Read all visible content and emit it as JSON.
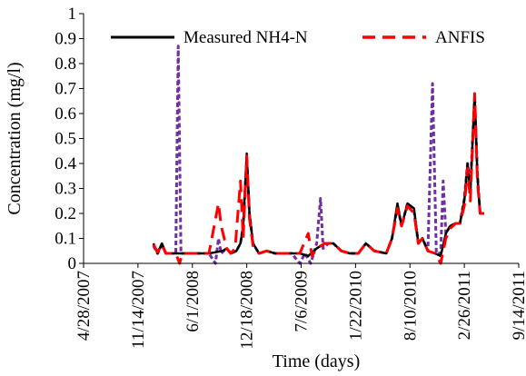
{
  "chart_data": {
    "type": "line",
    "title": "",
    "xlabel": "Time (days)",
    "ylabel": "Concentration (mg/l)",
    "x_tick_labels": [
      "4/28/2007",
      "11/14/2007",
      "6/1/2008",
      "12/18/2008",
      "7/6/2009",
      "1/22/2010",
      "8/10/2010",
      "2/26/2011",
      "9/14/2011"
    ],
    "xlim": [
      "4/28/2007",
      "9/14/2011"
    ],
    "ylim": [
      0,
      1
    ],
    "y_tick_labels": [
      "0",
      "0.1",
      "0.2",
      "0.3",
      "0.4",
      "0.5",
      "0.6",
      "0.7",
      "0.8",
      "0.9",
      "1"
    ],
    "grid": false,
    "legend_position": "top",
    "series": [
      {
        "name": "Measured NH4-N",
        "color": "#000000",
        "style": "solid",
        "points": [
          [
            "1/10/2008",
            0.08
          ],
          [
            "1/25/2008",
            0.04
          ],
          [
            "2/10/2008",
            0.08
          ],
          [
            "2/25/2008",
            0.04
          ],
          [
            "4/1/2008",
            0.04
          ],
          [
            "6/1/2008",
            0.04
          ],
          [
            "8/1/2008",
            0.04
          ],
          [
            "9/20/2008",
            0.05
          ],
          [
            "10/5/2008",
            0.06
          ],
          [
            "10/20/2008",
            0.04
          ],
          [
            "11/10/2008",
            0.05
          ],
          [
            "11/25/2008",
            0.08
          ],
          [
            "12/5/2008",
            0.15
          ],
          [
            "12/18/2008",
            0.44
          ],
          [
            "12/28/2008",
            0.2
          ],
          [
            "1/10/2009",
            0.08
          ],
          [
            "2/1/2009",
            0.04
          ],
          [
            "3/1/2009",
            0.05
          ],
          [
            "4/1/2009",
            0.04
          ],
          [
            "6/1/2009",
            0.04
          ],
          [
            "7/1/2009",
            0.04
          ],
          [
            "8/1/2009",
            0.03
          ],
          [
            "9/1/2009",
            0.06
          ],
          [
            "10/1/2009",
            0.08
          ],
          [
            "11/1/2009",
            0.08
          ],
          [
            "12/1/2009",
            0.05
          ],
          [
            "1/1/2010",
            0.04
          ],
          [
            "2/1/2010",
            0.04
          ],
          [
            "3/1/2010",
            0.08
          ],
          [
            "4/1/2010",
            0.05
          ],
          [
            "5/15/2010",
            0.04
          ],
          [
            "6/5/2010",
            0.1
          ],
          [
            "6/25/2010",
            0.24
          ],
          [
            "7/10/2010",
            0.15
          ],
          [
            "8/1/2010",
            0.24
          ],
          [
            "8/25/2010",
            0.22
          ],
          [
            "9/10/2010",
            0.08
          ],
          [
            "9/25/2010",
            0.1
          ],
          [
            "10/15/2010",
            0.05
          ],
          [
            "11/10/2010",
            0.04
          ],
          [
            "12/1/2010",
            0.03
          ],
          [
            "12/20/2010",
            0.12
          ],
          [
            "1/5/2011",
            0.15
          ],
          [
            "1/25/2011",
            0.16
          ],
          [
            "2/10/2011",
            0.16
          ],
          [
            "2/26/2011",
            0.25
          ],
          [
            "3/10/2011",
            0.4
          ],
          [
            "3/20/2011",
            0.28
          ],
          [
            "4/5/2011",
            0.68
          ],
          [
            "4/15/2011",
            0.35
          ],
          [
            "4/25/2011",
            0.2
          ],
          [
            "5/10/2011",
            0.2
          ]
        ]
      },
      {
        "name": "ANFIS",
        "color": "#ff0000",
        "style": "long-dash",
        "points": [
          [
            "1/10/2008",
            0.075
          ],
          [
            "1/25/2008",
            0.045
          ],
          [
            "2/10/2008",
            0.075
          ],
          [
            "2/25/2008",
            0.04
          ],
          [
            "4/1/2008",
            0.04
          ],
          [
            "4/15/2008",
            0.0
          ],
          [
            "4/25/2008",
            0.04
          ],
          [
            "6/1/2008",
            0.04
          ],
          [
            "8/1/2008",
            0.04
          ],
          [
            "9/5/2008",
            0.24
          ],
          [
            "9/15/2008",
            0.15
          ],
          [
            "10/5/2008",
            0.06
          ],
          [
            "10/20/2008",
            0.04
          ],
          [
            "11/5/2008",
            0.06
          ],
          [
            "11/25/2008",
            0.33
          ],
          [
            "12/5/2008",
            0.1
          ],
          [
            "12/18/2008",
            0.43
          ],
          [
            "12/28/2008",
            0.18
          ],
          [
            "1/10/2009",
            0.07
          ],
          [
            "2/1/2009",
            0.04
          ],
          [
            "3/1/2009",
            0.05
          ],
          [
            "4/1/2009",
            0.04
          ],
          [
            "6/1/2009",
            0.04
          ],
          [
            "7/1/2009",
            0.04
          ],
          [
            "8/1/2009",
            0.12
          ],
          [
            "8/15/2009",
            0.03
          ],
          [
            "9/1/2009",
            0.06
          ],
          [
            "10/1/2009",
            0.08
          ],
          [
            "11/1/2009",
            0.08
          ],
          [
            "12/1/2009",
            0.05
          ],
          [
            "1/1/2010",
            0.04
          ],
          [
            "2/1/2010",
            0.04
          ],
          [
            "3/1/2010",
            0.08
          ],
          [
            "4/1/2010",
            0.05
          ],
          [
            "5/15/2010",
            0.04
          ],
          [
            "6/5/2010",
            0.1
          ],
          [
            "6/25/2010",
            0.22
          ],
          [
            "7/10/2010",
            0.15
          ],
          [
            "8/1/2010",
            0.23
          ],
          [
            "8/25/2010",
            0.2
          ],
          [
            "9/10/2010",
            0.08
          ],
          [
            "9/25/2010",
            0.1
          ],
          [
            "10/15/2010",
            0.05
          ],
          [
            "11/10/2010",
            0.04
          ],
          [
            "12/1/2010",
            0.0
          ],
          [
            "12/20/2010",
            0.1
          ],
          [
            "1/5/2011",
            0.14
          ],
          [
            "1/25/2011",
            0.16
          ],
          [
            "2/10/2011",
            0.16
          ],
          [
            "2/26/2011",
            0.23
          ],
          [
            "3/10/2011",
            0.38
          ],
          [
            "3/20/2011",
            0.25
          ],
          [
            "4/5/2011",
            0.68
          ],
          [
            "4/15/2011",
            0.33
          ],
          [
            "4/25/2011",
            0.2
          ],
          [
            "5/10/2011",
            0.2
          ]
        ]
      },
      {
        "name": "",
        "color": "#7030a0",
        "style": "short-dash",
        "points": [
          [
            "1/10/2008",
            0.07
          ],
          [
            "1/25/2008",
            0.04
          ],
          [
            "2/10/2008",
            0.07
          ],
          [
            "2/25/2008",
            0.04
          ],
          [
            "4/1/2008",
            0.04
          ],
          [
            "4/10/2008",
            0.87
          ],
          [
            "4/20/2008",
            0.04
          ],
          [
            "6/1/2008",
            0.04
          ],
          [
            "8/1/2008",
            0.04
          ],
          [
            "8/25/2008",
            0.0
          ],
          [
            "9/5/2008",
            0.1
          ],
          [
            "9/15/2008",
            0.04
          ],
          [
            "10/5/2008",
            0.06
          ],
          [
            "10/20/2008",
            0.04
          ],
          [
            "11/10/2008",
            0.05
          ],
          [
            "11/25/2008",
            0.08
          ],
          [
            "12/5/2008",
            0.15
          ],
          [
            "12/18/2008",
            0.42
          ],
          [
            "12/28/2008",
            0.2
          ],
          [
            "1/10/2009",
            0.08
          ],
          [
            "2/1/2009",
            0.04
          ],
          [
            "3/1/2009",
            0.05
          ],
          [
            "4/1/2009",
            0.04
          ],
          [
            "6/1/2009",
            0.04
          ],
          [
            "7/1/2009",
            0.0
          ],
          [
            "7/20/2009",
            0.04
          ],
          [
            "8/10/2009",
            0.0
          ],
          [
            "9/1/2009",
            0.08
          ],
          [
            "9/15/2009",
            0.26
          ],
          [
            "9/25/2009",
            0.06
          ],
          [
            "10/15/2009",
            0.08
          ],
          [
            "11/1/2009",
            0.08
          ],
          [
            "12/1/2009",
            0.05
          ],
          [
            "1/1/2010",
            0.04
          ],
          [
            "2/1/2010",
            0.04
          ],
          [
            "3/1/2010",
            0.08
          ],
          [
            "4/1/2010",
            0.05
          ],
          [
            "5/15/2010",
            0.04
          ],
          [
            "6/5/2010",
            0.1
          ],
          [
            "6/25/2010",
            0.23
          ],
          [
            "7/10/2010",
            0.15
          ],
          [
            "8/1/2010",
            0.24
          ],
          [
            "8/25/2010",
            0.21
          ],
          [
            "9/10/2010",
            0.08
          ],
          [
            "9/25/2010",
            0.1
          ],
          [
            "10/15/2010",
            0.05
          ],
          [
            "11/1/2010",
            0.72
          ],
          [
            "11/15/2010",
            0.04
          ],
          [
            "12/1/2010",
            0.04
          ],
          [
            "12/10/2010",
            0.33
          ],
          [
            "12/20/2010",
            0.12
          ],
          [
            "1/5/2011",
            0.15
          ],
          [
            "1/25/2011",
            0.16
          ],
          [
            "2/10/2011",
            0.16
          ],
          [
            "2/26/2011",
            0.26
          ],
          [
            "3/10/2011",
            0.4
          ],
          [
            "3/20/2011",
            0.3
          ],
          [
            "4/5/2011",
            0.67
          ],
          [
            "4/15/2011",
            0.36
          ],
          [
            "4/25/2011",
            0.2
          ],
          [
            "5/10/2011",
            0.2
          ]
        ]
      }
    ]
  }
}
